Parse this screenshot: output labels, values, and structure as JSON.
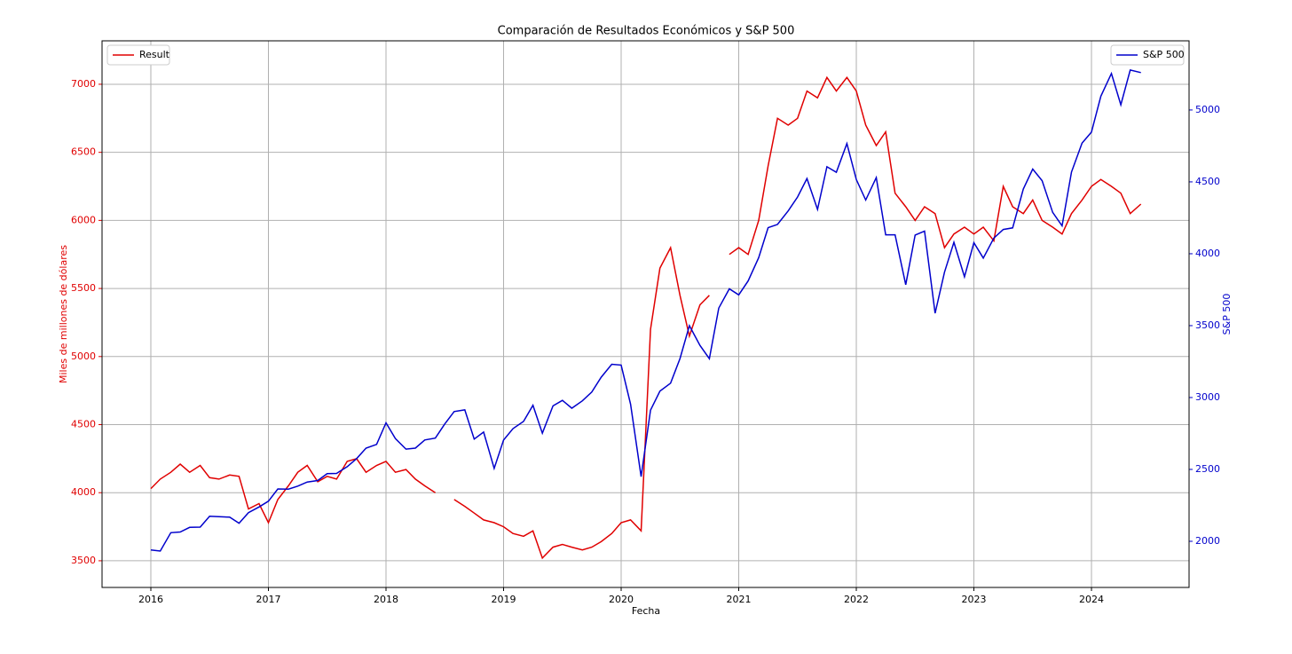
{
  "chart_data": {
    "type": "line",
    "title": "Comparación de Resultados Económicos y S&P 500",
    "xlabel": "Fecha",
    "ylabel": "Miles de millones de dólares",
    "y2label": "S&P 500",
    "x": [
      2016.0,
      2016.08,
      2016.17,
      2016.25,
      2016.33,
      2016.42,
      2016.5,
      2016.58,
      2016.67,
      2016.75,
      2016.83,
      2016.92,
      2017.0,
      2017.08,
      2017.17,
      2017.25,
      2017.33,
      2017.42,
      2017.5,
      2017.58,
      2017.67,
      2017.75,
      2017.83,
      2017.92,
      2018.0,
      2018.08,
      2018.17,
      2018.25,
      2018.33,
      2018.42,
      2018.5,
      2018.58,
      2018.67,
      2018.75,
      2018.83,
      2018.92,
      2019.0,
      2019.08,
      2019.17,
      2019.25,
      2019.33,
      2019.42,
      2019.5,
      2019.58,
      2019.67,
      2019.75,
      2019.83,
      2019.92,
      2020.0,
      2020.08,
      2020.17,
      2020.25,
      2020.33,
      2020.42,
      2020.5,
      2020.58,
      2020.67,
      2020.75,
      2020.83,
      2020.92,
      2021.0,
      2021.08,
      2021.17,
      2021.25,
      2021.33,
      2021.42,
      2021.5,
      2021.58,
      2021.67,
      2021.75,
      2021.83,
      2021.92,
      2022.0,
      2022.08,
      2022.17,
      2022.25,
      2022.33,
      2022.42,
      2022.5,
      2022.58,
      2022.67,
      2022.75,
      2022.83,
      2022.92,
      2023.0,
      2023.08,
      2023.17,
      2023.25,
      2023.33,
      2023.42,
      2023.5,
      2023.58,
      2023.67,
      2023.75,
      2023.83,
      2023.92,
      2024.0,
      2024.08,
      2024.17,
      2024.25,
      2024.33,
      2024.42
    ],
    "series": [
      {
        "name": "Result",
        "color": "#e00000",
        "axis": "y",
        "values": [
          4030,
          4100,
          4150,
          4210,
          4150,
          4200,
          4110,
          4100,
          4130,
          4120,
          3880,
          3920,
          3780,
          3950,
          4050,
          4150,
          4200,
          4080,
          4120,
          4100,
          4230,
          4250,
          4150,
          4200,
          4230,
          4150,
          4170,
          4100,
          4050,
          4000,
          null,
          3950,
          3900,
          3850,
          3800,
          3780,
          3750,
          3700,
          3680,
          3720,
          3520,
          3600,
          3620,
          3600,
          3580,
          3600,
          3640,
          3700,
          3780,
          3800,
          3720,
          5200,
          5650,
          5800,
          5450,
          5150,
          5380,
          5450,
          null,
          5750,
          5800,
          5750,
          6000,
          6400,
          6750,
          6700,
          6750,
          6950,
          6900,
          7050,
          6950,
          7050,
          6950,
          6700,
          6550,
          6650,
          6200,
          6100,
          6000,
          6100,
          6050,
          5800,
          5900,
          5950,
          5900,
          5950,
          5850,
          6250,
          6100,
          6050,
          6150,
          6000,
          5950,
          5900,
          6050,
          6150,
          6250,
          6300,
          6250,
          6200,
          6050,
          6120
        ]
      },
      {
        "name": "S&P 500",
        "color": "#0000cc",
        "axis": "y2",
        "values": [
          1940,
          1932,
          2060,
          2065,
          2097,
          2099,
          2174,
          2171,
          2168,
          2126,
          2199,
          2239,
          2279,
          2364,
          2363,
          2384,
          2412,
          2423,
          2470,
          2472,
          2519,
          2575,
          2648,
          2674,
          2824,
          2714,
          2641,
          2648,
          2705,
          2718,
          2816,
          2902,
          2914,
          2711,
          2760,
          2507,
          2704,
          2784,
          2834,
          2946,
          2752,
          2942,
          2980,
          2926,
          2977,
          3038,
          3141,
          3231,
          3226,
          2954,
          2450,
          2912,
          3044,
          3100,
          3271,
          3500,
          3363,
          3270,
          3622,
          3756,
          3714,
          3811,
          3973,
          4181,
          4204,
          4298,
          4395,
          4523,
          4308,
          4605,
          4567,
          4766,
          4516,
          4374,
          4530,
          4132,
          4132,
          3785,
          4130,
          4158,
          3586,
          3872,
          4080,
          3840,
          4077,
          3970,
          4109,
          4169,
          4180,
          4450,
          4589,
          4508,
          4288,
          4194,
          4568,
          4770,
          4846,
          5096,
          5254,
          5036,
          5278,
          5260
        ]
      }
    ],
    "xlim": [
      2015.585,
      2024.83
    ],
    "xticks": [
      2016,
      2017,
      2018,
      2019,
      2020,
      2021,
      2022,
      2023,
      2024
    ],
    "ylim": [
      3304,
      7319
    ],
    "yticks": [
      3500,
      4000,
      4500,
      5000,
      5500,
      6000,
      6500,
      7000
    ],
    "y2lim": [
      1679,
      5481
    ],
    "y2ticks": [
      2000,
      2500,
      3000,
      3500,
      4000,
      4500,
      5000
    ],
    "grid": true,
    "legend": "upper left",
    "legend2": "upper right"
  }
}
